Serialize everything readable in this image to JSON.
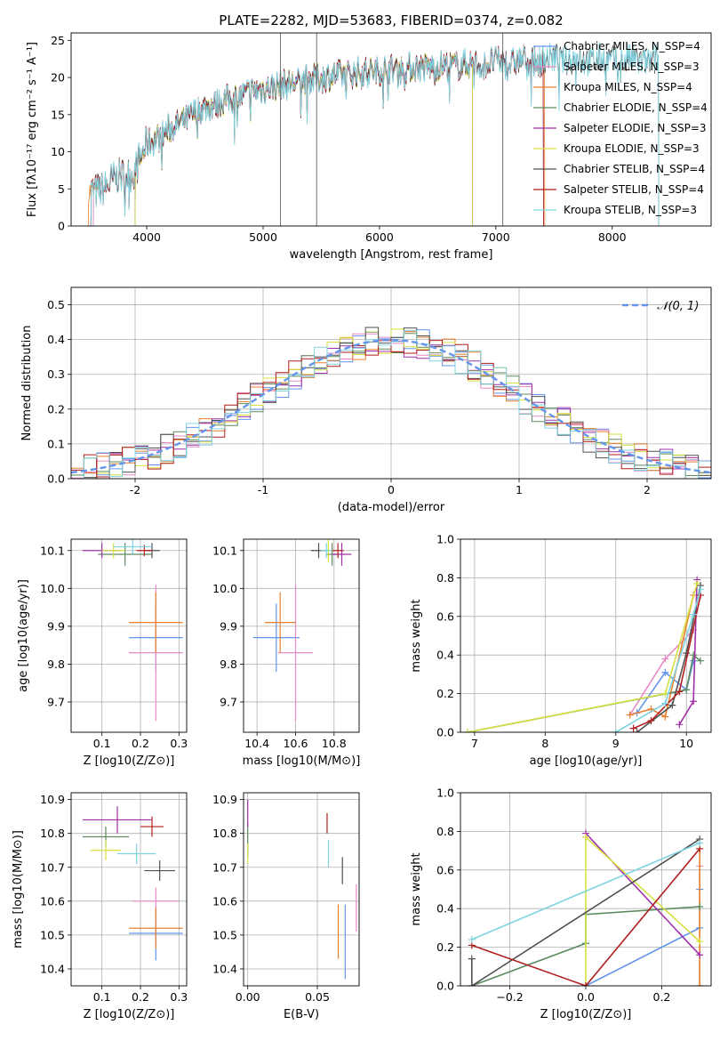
{
  "chart_data": [
    {
      "id": "spectrum",
      "type": "line",
      "title": "PLATE=2282, MJD=53683, FIBERID=0374, z=0.082",
      "xlabel": "wavelength [Angstrom, rest frame]",
      "ylabel": "Flux [fλ10⁻¹⁷ erg cm⁻² s⁻¹ A⁻¹]",
      "xlim": [
        3350,
        8850
      ],
      "ylim": [
        0,
        26
      ],
      "xticks": [
        4000,
        5000,
        6000,
        7000,
        8000
      ],
      "yticks": [
        0,
        5,
        10,
        15,
        20,
        25
      ],
      "grid": false,
      "legend_position": "top-right",
      "continuum": {
        "x": [
          3550,
          3700,
          3900,
          4000,
          4200,
          4500,
          5000,
          5500,
          6000,
          6500,
          7000,
          7500,
          8000,
          8400
        ],
        "y": [
          4.5,
          6,
          7.5,
          11,
          13,
          16,
          18.5,
          20,
          21,
          21.5,
          22,
          22.5,
          22.3,
          22.2
        ]
      },
      "series": [
        {
          "name": "Chabrier MILES, N_SSP=4",
          "color": "#6495ed",
          "start": 3540,
          "end": 7410
        },
        {
          "name": "Salpeter MILES, N_SSP=3",
          "color": "#e78ac3",
          "start": 3540,
          "end": 7410
        },
        {
          "name": "Kroupa MILES, N_SSP=4",
          "color": "#e8802e",
          "start": 3500,
          "end": 7420
        },
        {
          "name": "Chabrier ELODIE, N_SSP=4",
          "color": "#5e8a5e",
          "start": 3900,
          "end": 6800
        },
        {
          "name": "Salpeter ELODIE, N_SSP=3",
          "color": "#a130a8",
          "start": 3900,
          "end": 6800
        },
        {
          "name": "Kroupa ELODIE, N_SSP=3",
          "color": "#d6e040",
          "start": 3900,
          "end": 6800
        },
        {
          "name": "Chabrier STELIB, N_SSP=4",
          "color": "#505050",
          "start": 3520,
          "end": 8400
        },
        {
          "name": "Salpeter STELIB, N_SSP=4",
          "color": "#b01e1e",
          "start": 3520,
          "end": 7410
        },
        {
          "name": "Kroupa STELIB, N_SSP=3",
          "color": "#7dd3e0",
          "start": 3520,
          "end": 8400
        }
      ]
    },
    {
      "id": "residuals",
      "type": "bar",
      "xlabel": "(data-model)/error",
      "ylabel": "Normed distribution",
      "xlim": [
        -2.5,
        2.5
      ],
      "ylim": [
        0,
        0.55
      ],
      "xticks": [
        -2,
        -1,
        0,
        1,
        2
      ],
      "yticks": [
        0.0,
        0.1,
        0.2,
        0.3,
        0.4,
        0.5
      ],
      "grid": true,
      "legend_position": "top-right",
      "reference": {
        "name": "𝒩(0, 1)",
        "mu": 0,
        "sigma": 1,
        "color": "#6495ed"
      },
      "bin_width": 0.1
    },
    {
      "id": "age_vs_Z",
      "type": "scatter",
      "xlabel": "Z [log10(Z/Z⊙)]",
      "ylabel": "age  [log10(age/yr)]",
      "xlim": [
        0.02,
        0.32
      ],
      "ylim": [
        9.62,
        10.13
      ],
      "xticks": [
        0.1,
        0.2,
        0.3
      ],
      "yticks": [
        9.7,
        9.8,
        9.9,
        10.0,
        10.1
      ],
      "grid": true,
      "points": [
        {
          "series": "Chabrier MILES",
          "x": 0.24,
          "y": 9.87,
          "xerr": 0.07,
          "yerr": 0.09
        },
        {
          "series": "Salpeter MILES",
          "x": 0.24,
          "y": 9.83,
          "xerr": 0.07,
          "yerr": 0.18
        },
        {
          "series": "Kroupa MILES",
          "x": 0.24,
          "y": 9.91,
          "xerr": 0.07,
          "yerr": 0.08
        },
        {
          "series": "Chabrier ELODIE",
          "x": 0.16,
          "y": 10.09,
          "xerr": 0.07,
          "yerr": 0.03
        },
        {
          "series": "Salpeter ELODIE",
          "x": 0.1,
          "y": 10.1,
          "xerr": 0.05,
          "yerr": 0.02
        },
        {
          "series": "Kroupa ELODIE",
          "x": 0.13,
          "y": 10.1,
          "xerr": 0.03,
          "yerr": 0.02
        },
        {
          "series": "Chabrier STELIB",
          "x": 0.23,
          "y": 10.1,
          "xerr": 0.02,
          "yerr": 0.02
        },
        {
          "series": "Salpeter STELIB",
          "x": 0.21,
          "y": 10.1,
          "xerr": 0.02,
          "yerr": 0.015
        },
        {
          "series": "Kroupa STELIB",
          "x": 0.18,
          "y": 10.11,
          "xerr": 0.05,
          "yerr": 0.02
        }
      ]
    },
    {
      "id": "age_vs_mass",
      "type": "scatter",
      "xlabel": "mass [log10(M/M⊙)]",
      "xlim": [
        10.33,
        10.93
      ],
      "ylim": [
        9.62,
        10.13
      ],
      "xticks": [
        10.4,
        10.6,
        10.8
      ],
      "yticks": [
        9.7,
        9.8,
        9.9,
        10.0,
        10.1
      ],
      "grid": true,
      "points": [
        {
          "series": "Chabrier MILES",
          "x": 10.5,
          "y": 9.87,
          "xerr": 0.12,
          "yerr": 0.09
        },
        {
          "series": "Salpeter MILES",
          "x": 10.6,
          "y": 9.83,
          "xerr": 0.09,
          "yerr": 0.18
        },
        {
          "series": "Kroupa MILES",
          "x": 10.52,
          "y": 9.91,
          "xerr": 0.08,
          "yerr": 0.08
        },
        {
          "series": "Chabrier ELODIE",
          "x": 10.79,
          "y": 10.09,
          "xerr": 0.03,
          "yerr": 0.03
        },
        {
          "series": "Salpeter ELODIE",
          "x": 10.84,
          "y": 10.09,
          "xerr": 0.05,
          "yerr": 0.03
        },
        {
          "series": "Kroupa ELODIE",
          "x": 10.77,
          "y": 10.1,
          "xerr": 0.03,
          "yerr": 0.03
        },
        {
          "series": "Chabrier STELIB",
          "x": 10.72,
          "y": 10.1,
          "xerr": 0.04,
          "yerr": 0.02
        },
        {
          "series": "Salpeter STELIB",
          "x": 10.82,
          "y": 10.1,
          "xerr": 0.03,
          "yerr": 0.02
        },
        {
          "series": "Kroupa STELIB",
          "x": 10.76,
          "y": 10.1,
          "xerr": 0.03,
          "yerr": 0.02
        }
      ]
    },
    {
      "id": "mass_weight_vs_age",
      "type": "line",
      "xlabel": "age  [log10(age/yr)]",
      "ylabel": "mass weight",
      "xlim": [
        6.8,
        10.35
      ],
      "ylim": [
        0,
        1
      ],
      "xticks": [
        7,
        8,
        9,
        10
      ],
      "yticks": [
        0.0,
        0.2,
        0.4,
        0.6,
        0.8,
        1.0
      ],
      "grid": true,
      "series": [
        {
          "name": "Chabrier MILES",
          "x": [
            9.3,
            9.7,
            10.0,
            10.1
          ],
          "y": [
            0.1,
            0.31,
            0.22,
            0.37
          ]
        },
        {
          "name": "Salpeter MILES",
          "x": [
            9.2,
            9.7,
            10.1
          ],
          "y": [
            0.09,
            0.38,
            0.53
          ]
        },
        {
          "name": "Kroupa MILES",
          "x": [
            9.2,
            9.5,
            9.7,
            10.1
          ],
          "y": [
            0.09,
            0.12,
            0.08,
            0.71
          ]
        },
        {
          "name": "Chabrier ELODIE",
          "x": [
            6.9,
            10.0,
            10.1,
            10.2
          ],
          "y": [
            0.0,
            0.22,
            0.4,
            0.37
          ]
        },
        {
          "name": "Salpeter ELODIE",
          "x": [
            9.9,
            10.1,
            10.15
          ],
          "y": [
            0.04,
            0.16,
            0.79
          ]
        },
        {
          "name": "Kroupa ELODIE",
          "x": [
            6.9,
            9.7,
            10.15
          ],
          "y": [
            0.0,
            0.2,
            0.77
          ]
        },
        {
          "name": "Chabrier STELIB",
          "x": [
            9.3,
            9.8,
            10.0,
            10.2
          ],
          "y": [
            0.0,
            0.14,
            0.41,
            0.76
          ]
        },
        {
          "name": "Salpeter STELIB",
          "x": [
            9.25,
            9.5,
            9.9,
            10.2
          ],
          "y": [
            0.02,
            0.06,
            0.21,
            0.71
          ]
        },
        {
          "name": "Kroupa STELIB",
          "x": [
            9.0,
            9.7,
            10.1,
            10.2
          ],
          "y": [
            0.0,
            0.15,
            0.61,
            0.74
          ]
        }
      ]
    },
    {
      "id": "mass_vs_Z",
      "type": "scatter",
      "xlabel": "Z [log10(Z/Z⊙)]",
      "ylabel": "mass [log10(M/M⊙)]",
      "xlim": [
        0.02,
        0.32
      ],
      "ylim": [
        10.35,
        10.92
      ],
      "xticks": [
        0.1,
        0.2,
        0.3
      ],
      "yticks": [
        10.4,
        10.5,
        10.6,
        10.7,
        10.8,
        10.9
      ],
      "grid": true,
      "points": [
        {
          "series": "Chabrier MILES",
          "x": 0.24,
          "y": 10.505,
          "xerr": 0.07,
          "yerr": 0.08
        },
        {
          "series": "Salpeter MILES",
          "x": 0.24,
          "y": 10.6,
          "xerr": 0.06,
          "yerr": 0.04
        },
        {
          "series": "Kroupa MILES",
          "x": 0.24,
          "y": 10.52,
          "xerr": 0.07,
          "yerr": 0.06
        },
        {
          "series": "Chabrier ELODIE",
          "x": 0.11,
          "y": 10.79,
          "xerr": 0.06,
          "yerr": 0.03
        },
        {
          "series": "Salpeter ELODIE",
          "x": 0.14,
          "y": 10.84,
          "xerr": 0.09,
          "yerr": 0.04
        },
        {
          "series": "Kroupa ELODIE",
          "x": 0.11,
          "y": 10.75,
          "xerr": 0.04,
          "yerr": 0.03
        },
        {
          "series": "Chabrier STELIB",
          "x": 0.25,
          "y": 10.69,
          "xerr": 0.04,
          "yerr": 0.03
        },
        {
          "series": "Salpeter STELIB",
          "x": 0.23,
          "y": 10.82,
          "xerr": 0.03,
          "yerr": 0.03
        },
        {
          "series": "Kroupa STELIB",
          "x": 0.19,
          "y": 10.74,
          "xerr": 0.05,
          "yerr": 0.03
        }
      ]
    },
    {
      "id": "mass_vs_ebv",
      "type": "scatter",
      "xlabel": "E(B-V)",
      "xlim": [
        -0.003,
        0.08
      ],
      "ylim": [
        10.35,
        10.92
      ],
      "xticks": [
        0.0,
        0.05
      ],
      "yticks": [
        10.4,
        10.5,
        10.6,
        10.7,
        10.8,
        10.9
      ],
      "grid": true,
      "points": [
        {
          "series": "Chabrier MILES",
          "x": 0.07,
          "y": 10.48,
          "yerr": 0.11
        },
        {
          "series": "Salpeter MILES",
          "x": 0.078,
          "y": 10.58,
          "yerr": 0.07
        },
        {
          "series": "Kroupa MILES",
          "x": 0.065,
          "y": 10.51,
          "yerr": 0.08
        },
        {
          "series": "Chabrier ELODIE",
          "x": 0.0,
          "y": 10.78,
          "yerr": 0.05
        },
        {
          "series": "Salpeter ELODIE",
          "x": 0.0,
          "y": 10.86,
          "yerr": 0.04
        },
        {
          "series": "Kroupa ELODIE",
          "x": 0.0,
          "y": 10.74,
          "yerr": 0.03
        },
        {
          "series": "Chabrier STELIB",
          "x": 0.068,
          "y": 10.69,
          "yerr": 0.04
        },
        {
          "series": "Salpeter STELIB",
          "x": 0.057,
          "y": 10.83,
          "yerr": 0.03
        },
        {
          "series": "Kroupa STELIB",
          "x": 0.058,
          "y": 10.74,
          "yerr": 0.04
        }
      ]
    },
    {
      "id": "mass_weight_vs_Z",
      "type": "line",
      "xlabel": "Z [log10(Z/Z⊙)]",
      "ylabel": "mass weight",
      "xlim": [
        -0.33,
        0.33
      ],
      "ylim": [
        0,
        1
      ],
      "xticks": [
        -0.2,
        0.0,
        0.2
      ],
      "yticks": [
        0.0,
        0.2,
        0.4,
        0.6,
        0.8,
        1.0
      ],
      "grid": true,
      "series": [
        {
          "name": "Chabrier MILES",
          "x": [
            0.0,
            0.3,
            0.3
          ],
          "y": [
            0.0,
            0.3,
            0.5
          ]
        },
        {
          "name": "Salpeter MILES",
          "x": [
            0.3,
            0.3
          ],
          "y": [
            0.0,
            0.62
          ]
        },
        {
          "name": "Kroupa MILES",
          "x": [
            0.3,
            0.3
          ],
          "y": [
            0.0,
            0.71
          ]
        },
        {
          "name": "Chabrier ELODIE",
          "x": [
            -0.3,
            0.0,
            0.0,
            0.3
          ],
          "y": [
            0.0,
            0.22,
            0.37,
            0.41
          ]
        },
        {
          "name": "Salpeter ELODIE",
          "x": [
            0.0,
            0.3
          ],
          "y": [
            0.79,
            0.16
          ]
        },
        {
          "name": "Kroupa ELODIE",
          "x": [
            0.0,
            0.0,
            0.3
          ],
          "y": [
            0.0,
            0.77,
            0.23
          ]
        },
        {
          "name": "Chabrier STELIB",
          "x": [
            -0.3,
            -0.3,
            0.3
          ],
          "y": [
            0.14,
            0.0,
            0.76
          ]
        },
        {
          "name": "Salpeter STELIB",
          "x": [
            -0.3,
            0.0,
            0.3
          ],
          "y": [
            0.21,
            0.0,
            0.71
          ]
        },
        {
          "name": "Kroupa STELIB",
          "x": [
            -0.3,
            0.3
          ],
          "y": [
            0.24,
            0.74
          ]
        }
      ]
    }
  ]
}
